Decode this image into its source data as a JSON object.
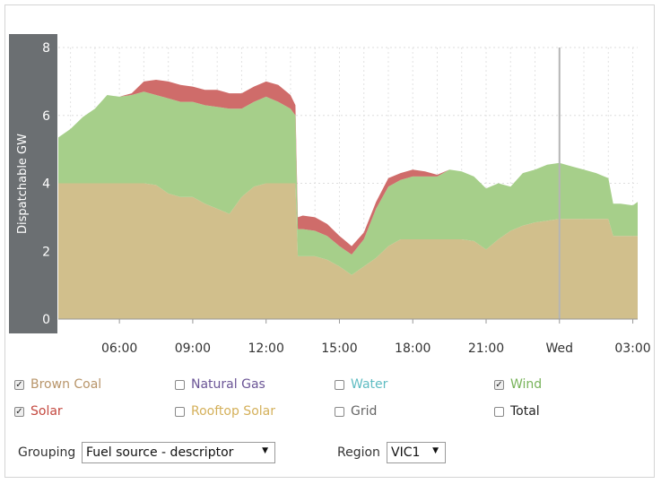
{
  "colors": {
    "brown_coal": "#c1a67c",
    "natural_gas": "#7f6aa6",
    "water": "#6fc2c8",
    "wind": "#7fb55a",
    "solar": "#c4483f",
    "rooftop_solar": "#d9b85f",
    "grid": "#999999",
    "total": "#333333",
    "area_brown_coal": "#d1bf8c",
    "area_wind": "#a6cf8a",
    "area_solar": "#cf6c6a",
    "axis_band": "#6b6f72"
  },
  "legend": [
    {
      "label": "Brown Coal",
      "checked": true,
      "color": "#b8956a"
    },
    {
      "label": "Natural Gas",
      "checked": false,
      "color": "#6b5596"
    },
    {
      "label": "Water",
      "checked": false,
      "color": "#5fbcc2"
    },
    {
      "label": "Wind",
      "checked": true,
      "color": "#78b35a"
    },
    {
      "label": "Solar",
      "checked": true,
      "color": "#c4483f"
    },
    {
      "label": "Rooftop Solar",
      "checked": false,
      "color": "#d4b05a"
    },
    {
      "label": "Grid",
      "checked": false,
      "color": "#666666"
    },
    {
      "label": "Total",
      "checked": false,
      "color": "#222222"
    }
  ],
  "controls": {
    "grouping_label": "Grouping",
    "grouping_value": "Fuel source - descriptor",
    "region_label": "Region",
    "region_value": "VIC1"
  },
  "chart_data": {
    "type": "area",
    "stacked": true,
    "ylabel": "Dispatchable GW",
    "ylim": [
      0,
      8
    ],
    "yticks": [
      "0",
      "2",
      "4",
      "6",
      "8"
    ],
    "xlim": [
      3.5,
      27.2
    ],
    "xticks": [
      {
        "x": 6,
        "label": "06:00"
      },
      {
        "x": 9,
        "label": "09:00"
      },
      {
        "x": 12,
        "label": "12:00"
      },
      {
        "x": 15,
        "label": "15:00"
      },
      {
        "x": 18,
        "label": "18:00"
      },
      {
        "x": 21,
        "label": "21:00"
      },
      {
        "x": 24,
        "label": "Wed"
      },
      {
        "x": 27,
        "label": "03:00"
      }
    ],
    "day_marker_x": 24,
    "x": [
      3.5,
      4.0,
      4.5,
      5.0,
      5.5,
      6.0,
      6.5,
      7.0,
      7.5,
      8.0,
      8.5,
      9.0,
      9.5,
      10.0,
      10.5,
      11.0,
      11.5,
      12.0,
      12.5,
      13.0,
      13.2,
      13.3,
      13.5,
      14.0,
      14.5,
      15.0,
      15.5,
      16.0,
      16.5,
      17.0,
      17.5,
      18.0,
      18.5,
      19.0,
      19.5,
      20.0,
      20.5,
      21.0,
      21.5,
      22.0,
      22.5,
      23.0,
      23.5,
      24.0,
      24.5,
      25.0,
      25.5,
      26.0,
      26.2,
      26.5,
      27.0,
      27.2
    ],
    "series": [
      {
        "name": "Brown Coal",
        "values": [
          4.0,
          4.0,
          4.0,
          4.0,
          4.0,
          4.0,
          4.0,
          4.0,
          3.95,
          3.7,
          3.6,
          3.6,
          3.4,
          3.25,
          3.1,
          3.6,
          3.9,
          4.0,
          4.0,
          4.0,
          4.0,
          1.85,
          1.85,
          1.85,
          1.75,
          1.55,
          1.3,
          1.55,
          1.8,
          2.15,
          2.35,
          2.35,
          2.35,
          2.35,
          2.35,
          2.35,
          2.3,
          2.05,
          2.35,
          2.6,
          2.75,
          2.85,
          2.9,
          2.95,
          2.95,
          2.95,
          2.95,
          2.95,
          2.45,
          2.45,
          2.45,
          2.45
        ]
      },
      {
        "name": "Wind",
        "values": [
          1.35,
          1.6,
          1.95,
          2.2,
          2.6,
          2.55,
          2.6,
          2.7,
          2.65,
          2.8,
          2.8,
          2.8,
          2.9,
          3.0,
          3.1,
          2.6,
          2.5,
          2.55,
          2.4,
          2.2,
          2.0,
          0.8,
          0.8,
          0.75,
          0.7,
          0.6,
          0.6,
          0.8,
          1.45,
          1.75,
          1.75,
          1.85,
          1.85,
          1.85,
          2.05,
          2.0,
          1.9,
          1.8,
          1.65,
          1.3,
          1.55,
          1.55,
          1.65,
          1.65,
          1.55,
          1.45,
          1.35,
          1.2,
          0.95,
          0.95,
          0.9,
          1.0
        ]
      },
      {
        "name": "Solar",
        "values": [
          0,
          0,
          0,
          0,
          0,
          0,
          0.05,
          0.3,
          0.45,
          0.5,
          0.5,
          0.45,
          0.45,
          0.5,
          0.45,
          0.45,
          0.45,
          0.45,
          0.5,
          0.4,
          0.3,
          0.35,
          0.4,
          0.4,
          0.35,
          0.3,
          0.25,
          0.2,
          0.2,
          0.25,
          0.2,
          0.2,
          0.15,
          0.05,
          0,
          0,
          0,
          0,
          0,
          0,
          0,
          0,
          0,
          0,
          0,
          0,
          0,
          0,
          0,
          0,
          0,
          0
        ]
      }
    ]
  }
}
